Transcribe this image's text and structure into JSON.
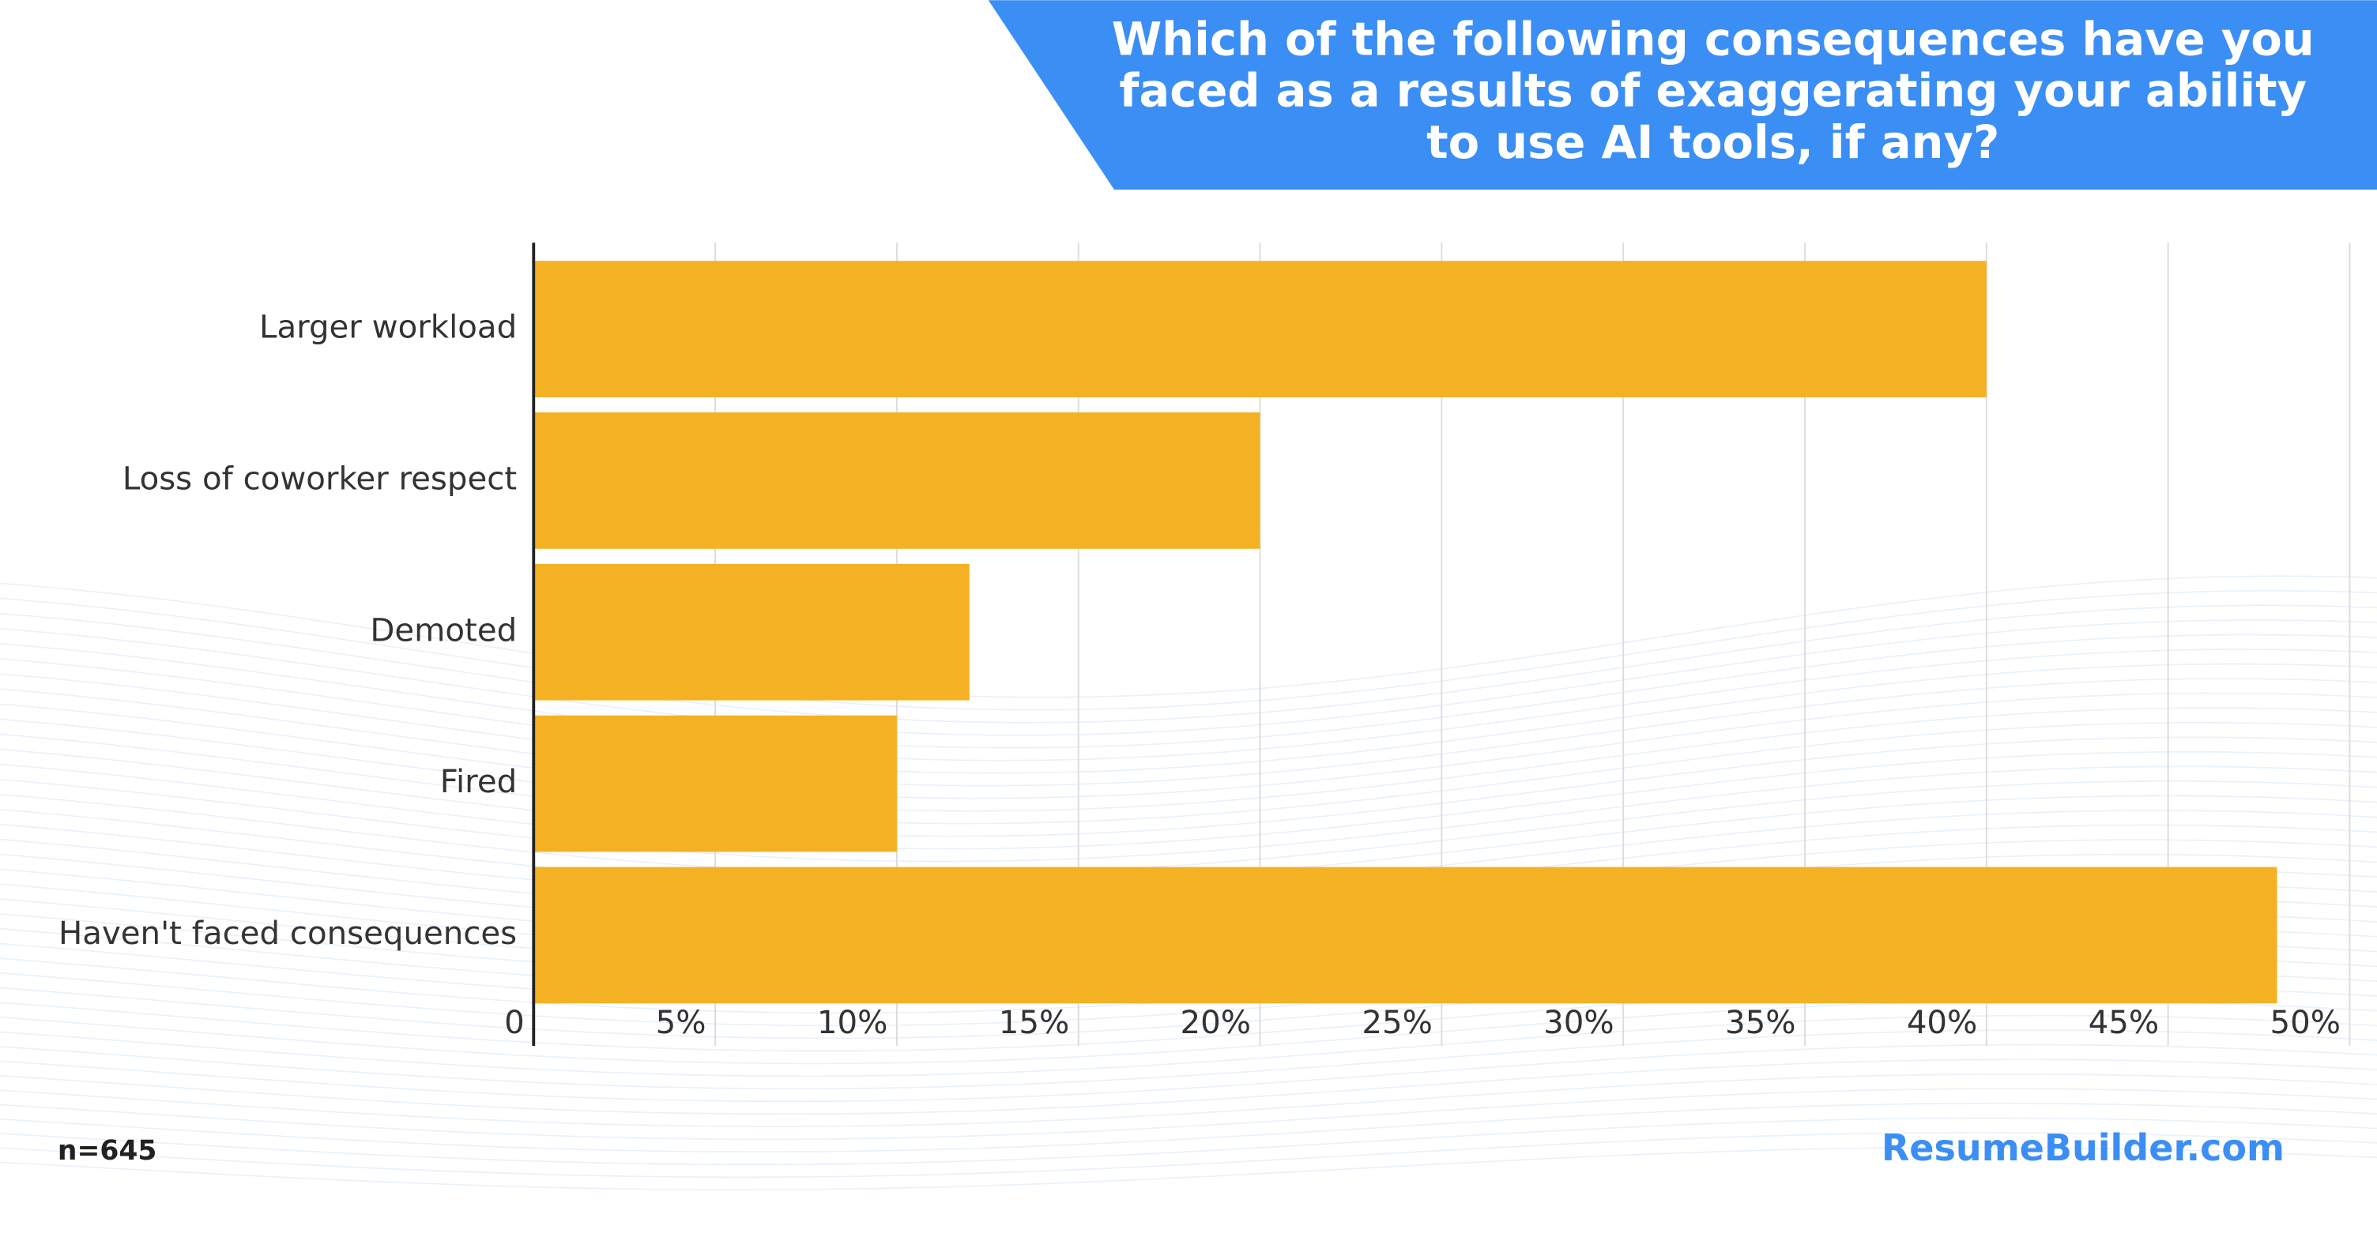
{
  "chart_data": {
    "type": "bar",
    "orientation": "horizontal",
    "title": "Which of the following consequences have you faced as a results of exaggerating your ability to use AI tools, if any?",
    "categories": [
      "Larger workload",
      "Loss of coworker respect",
      "Demoted",
      "Fired",
      "Haven't faced consequences"
    ],
    "values": [
      40,
      20,
      12,
      10,
      48
    ],
    "color": "#f4b124",
    "xlim": [
      0,
      50
    ],
    "xticks": [
      0,
      {
        "value": 5,
        "label": "5%"
      },
      {
        "value": 10,
        "label": "10%"
      },
      {
        "value": 15,
        "label": "15%"
      },
      {
        "value": 20,
        "label": "20%"
      },
      {
        "value": 25,
        "label": "25%"
      },
      {
        "value": 30,
        "label": "30%"
      },
      {
        "value": 35,
        "label": "35%"
      },
      {
        "value": 40,
        "label": "40%"
      },
      {
        "value": 45,
        "label": "45%"
      },
      {
        "value": 50,
        "label": "50%"
      }
    ],
    "grid": true,
    "note": "n=645",
    "source": "ResumeBuilder.com"
  }
}
